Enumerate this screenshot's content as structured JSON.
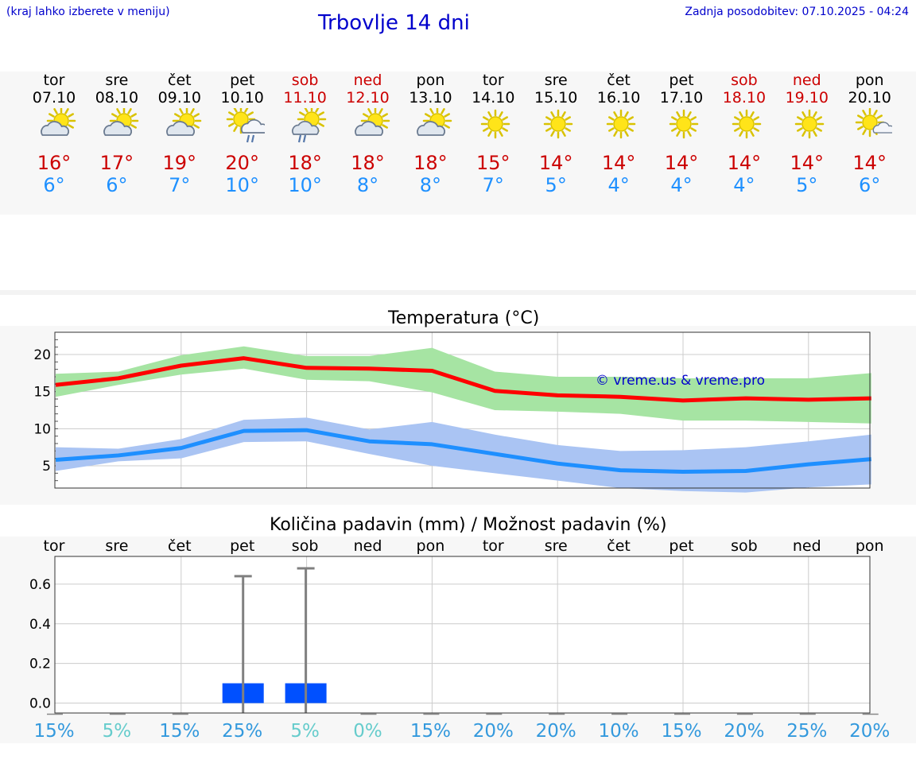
{
  "header": {
    "hint": "(kraj lahko izberete v meniju)",
    "title": "Trbovlje 14 dni",
    "updated": "Zadnja posodobitev: 07.10.2025 - 04:24"
  },
  "colors": {
    "header_text": "#0000cc",
    "max_temp": "#cc0000",
    "min_temp": "#1e90ff",
    "weekend": "#cc0000",
    "max_band": "#a6e4a3",
    "min_band": "#aac4f3",
    "max_line": "#ff0000",
    "min_line": "#1e8fff",
    "rain_bar": "#0050ff",
    "watermark": "#0000cc"
  },
  "days": [
    {
      "name": "tor",
      "date": "07.10",
      "tmax": "16°",
      "tmin": "6°",
      "icon": "partly-cloudy-icon",
      "weekend": false
    },
    {
      "name": "sre",
      "date": "08.10",
      "tmax": "17°",
      "tmin": "6°",
      "icon": "partly-cloudy-icon",
      "weekend": false
    },
    {
      "name": "čet",
      "date": "09.10",
      "tmax": "19°",
      "tmin": "7°",
      "icon": "partly-cloudy-icon",
      "weekend": false
    },
    {
      "name": "pet",
      "date": "10.10",
      "tmax": "20°",
      "tmin": "10°",
      "icon": "sun-rain-cloud-icon",
      "weekend": false
    },
    {
      "name": "sob",
      "date": "11.10",
      "tmax": "18°",
      "tmin": "10°",
      "icon": "cloud-rain-sun-icon",
      "weekend": true
    },
    {
      "name": "ned",
      "date": "12.10",
      "tmax": "18°",
      "tmin": "8°",
      "icon": "partly-cloudy-icon",
      "weekend": true
    },
    {
      "name": "pon",
      "date": "13.10",
      "tmax": "18°",
      "tmin": "8°",
      "icon": "partly-cloudy-icon",
      "weekend": false
    },
    {
      "name": "tor",
      "date": "14.10",
      "tmax": "15°",
      "tmin": "7°",
      "icon": "sun-icon",
      "weekend": false
    },
    {
      "name": "sre",
      "date": "15.10",
      "tmax": "14°",
      "tmin": "5°",
      "icon": "sun-icon",
      "weekend": false
    },
    {
      "name": "čet",
      "date": "16.10",
      "tmax": "14°",
      "tmin": "4°",
      "icon": "sun-icon",
      "weekend": false
    },
    {
      "name": "pet",
      "date": "17.10",
      "tmax": "14°",
      "tmin": "4°",
      "icon": "sun-icon",
      "weekend": false
    },
    {
      "name": "sob",
      "date": "18.10",
      "tmax": "14°",
      "tmin": "4°",
      "icon": "sun-icon",
      "weekend": true
    },
    {
      "name": "ned",
      "date": "19.10",
      "tmax": "14°",
      "tmin": "5°",
      "icon": "sun-icon",
      "weekend": true
    },
    {
      "name": "pon",
      "date": "20.10",
      "tmax": "14°",
      "tmin": "6°",
      "icon": "sun-small-cloud-icon",
      "weekend": false
    }
  ],
  "chart_data": [
    {
      "type": "line",
      "title": "Temperatura (°C)",
      "watermark": "© vreme.us & vreme.pro",
      "x": [
        "tor",
        "sre",
        "čet",
        "pet",
        "sob",
        "ned",
        "pon",
        "tor",
        "sre",
        "čet",
        "pet",
        "sob",
        "ned",
        "pon"
      ],
      "ylim": [
        2,
        23
      ],
      "yticks": [
        5,
        10,
        15,
        20
      ],
      "grid": true,
      "series": [
        {
          "values": [
            15.9,
            16.8,
            18.5,
            19.5,
            18.2,
            18.1,
            17.8,
            15.1,
            14.5,
            14.3,
            13.8,
            14.1,
            13.9,
            14.1
          ]
        },
        {
          "values": [
            5.8,
            6.4,
            7.4,
            9.7,
            9.8,
            8.3,
            7.9,
            6.6,
            5.3,
            4.4,
            4.2,
            4.3,
            5.2,
            5.9
          ]
        }
      ],
      "bands": [
        {
          "lower": [
            14.3,
            15.9,
            17.3,
            18.1,
            16.6,
            16.4,
            14.9,
            12.5,
            12.3,
            12.0,
            11.1,
            11.1,
            10.9,
            10.7
          ],
          "upper": [
            17.4,
            17.7,
            19.9,
            21.1,
            19.8,
            19.8,
            20.9,
            17.7,
            17.0,
            17.0,
            16.8,
            16.8,
            16.8,
            17.5
          ]
        },
        {
          "lower": [
            4.3,
            5.6,
            6.0,
            8.2,
            8.3,
            6.6,
            5.0,
            4.0,
            3.0,
            2.0,
            1.6,
            1.4,
            2.1,
            2.5
          ],
          "upper": [
            7.5,
            7.3,
            8.6,
            11.2,
            11.5,
            9.9,
            10.9,
            9.2,
            7.8,
            7.0,
            7.1,
            7.5,
            8.3,
            9.2
          ]
        }
      ]
    },
    {
      "type": "bar",
      "title": "Količina padavin (mm) / Možnost padavin (%)",
      "x": [
        "tor",
        "sre",
        "čet",
        "pet",
        "sob",
        "ned",
        "pon",
        "tor",
        "sre",
        "čet",
        "pet",
        "sob",
        "ned",
        "pon"
      ],
      "ylim": [
        -0.05,
        0.74
      ],
      "yticks": [
        "0.0",
        "0.2",
        "0.4",
        "0.6"
      ],
      "values": [
        0,
        0,
        0,
        0.1,
        0.1,
        0,
        0,
        0,
        0,
        0,
        0,
        0,
        0,
        0
      ],
      "error_upper": [
        0,
        0,
        0,
        0.64,
        0.68,
        0,
        0,
        0,
        0,
        0,
        0,
        0,
        0,
        0
      ],
      "probability": [
        "15%",
        "5%",
        "15%",
        "25%",
        "5%",
        "0%",
        "15%",
        "20%",
        "20%",
        "10%",
        "15%",
        "20%",
        "25%",
        "20%"
      ],
      "probability_colors": [
        "#3399dd",
        "#66cccc",
        "#3399dd",
        "#3399dd",
        "#66cccc",
        "#66cccc",
        "#3399dd",
        "#3399dd",
        "#3399dd",
        "#3399dd",
        "#3399dd",
        "#3399dd",
        "#3399dd",
        "#3399dd"
      ],
      "grid": true
    }
  ]
}
